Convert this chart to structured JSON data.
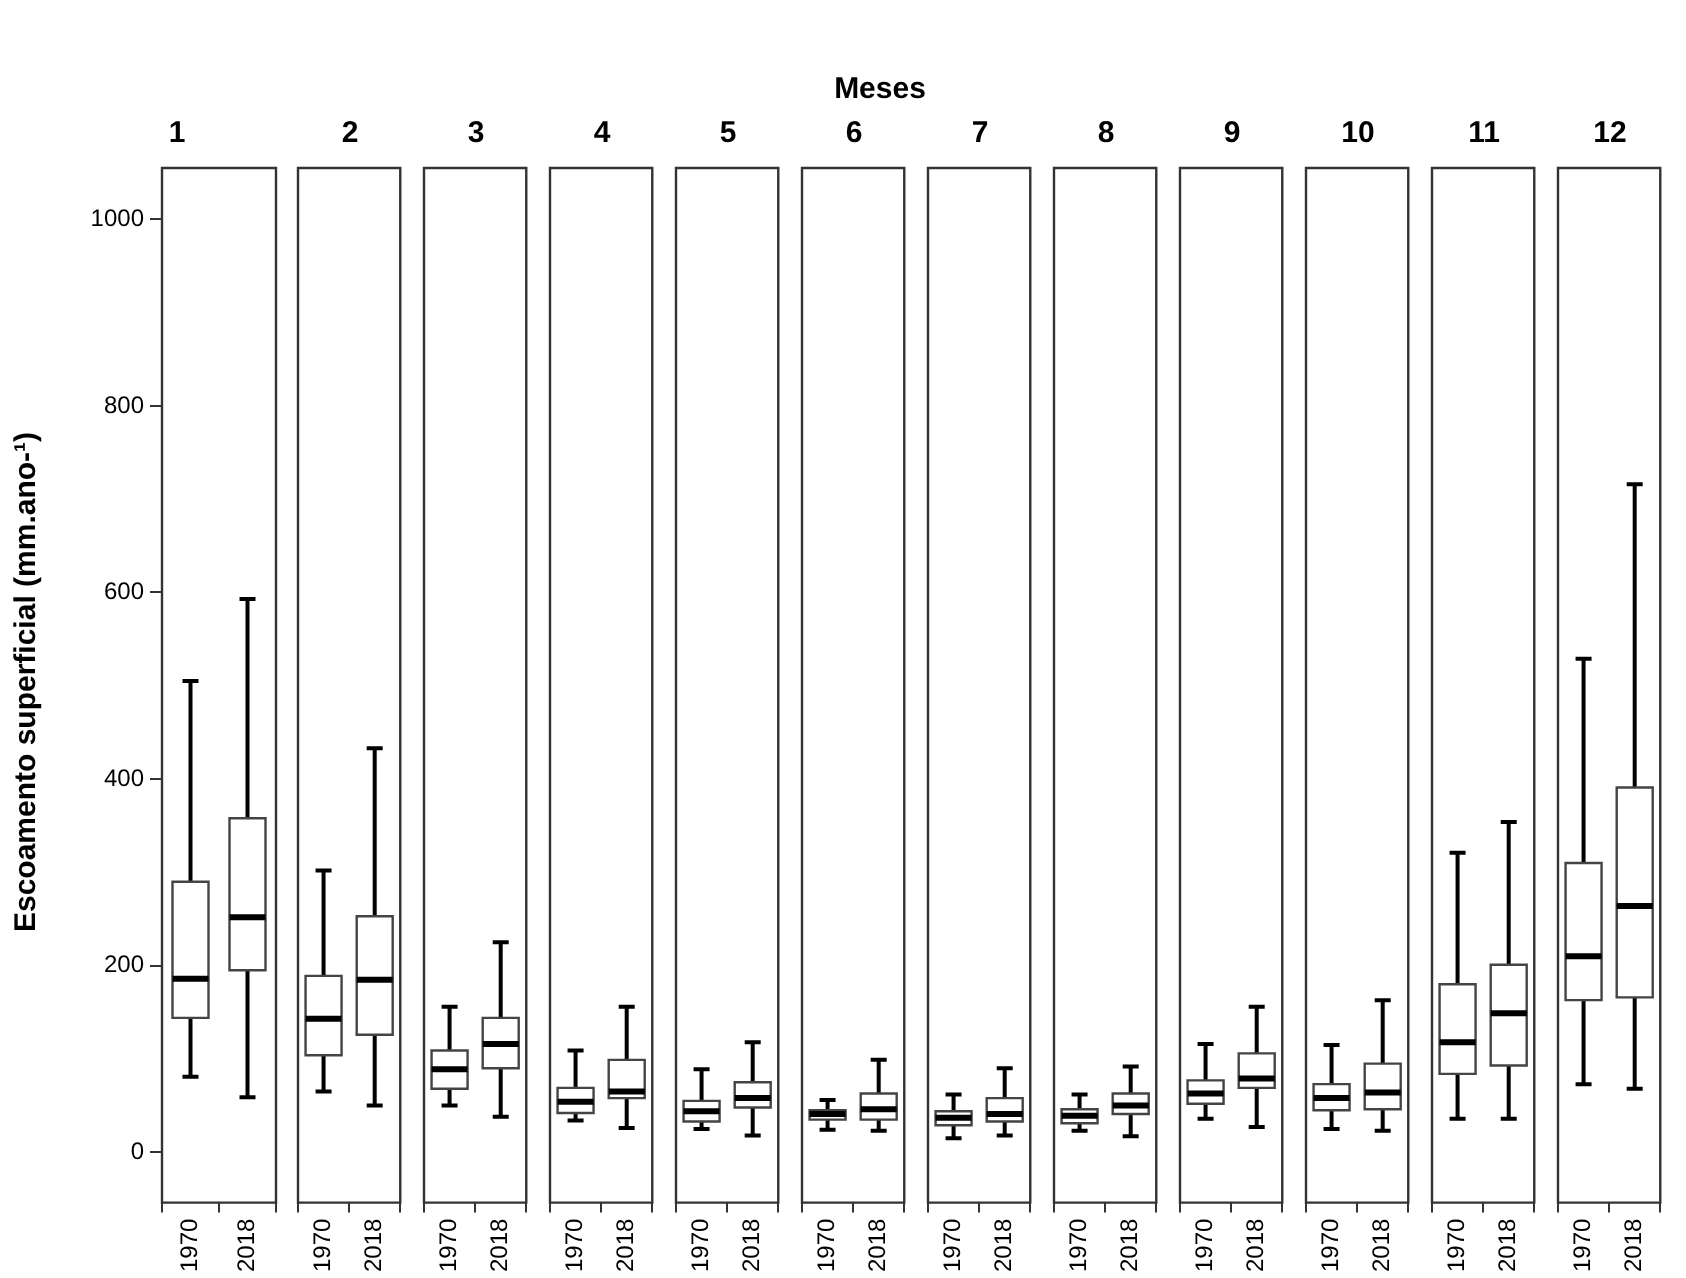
{
  "chart_data": [
    {
      "type": "box",
      "title": "1",
      "ylabel": "Escoamento superficial (mm.ano-¹)",
      "annotations": [
        "Meses"
      ],
      "categories": [
        "1970",
        "2018"
      ],
      "ylim": [
        -54,
        1055
      ],
      "yticks": [
        0,
        200,
        400,
        600,
        800,
        1000
      ],
      "boxes": [
        {
          "low": 81,
          "q1": 144,
          "median": 186,
          "q3": 290,
          "high": 505
        },
        {
          "low": 59,
          "q1": 195,
          "median": 252,
          "q3": 358,
          "high": 593
        }
      ]
    },
    {
      "type": "box",
      "title": "2",
      "tick_labels": "x",
      "categories": [
        "1970",
        "2018"
      ],
      "ylim": [
        -54,
        1055
      ],
      "boxes": [
        {
          "low": 65,
          "q1": 104,
          "median": 143,
          "q3": 189,
          "high": 302
        },
        {
          "low": 50,
          "q1": 126,
          "median": 185,
          "q3": 253,
          "high": 433
        }
      ]
    },
    {
      "type": "box",
      "title": "3",
      "tick_labels": "x",
      "categories": [
        "1970",
        "2018"
      ],
      "ylim": [
        -54,
        1055
      ],
      "boxes": [
        {
          "low": 50,
          "q1": 68,
          "median": 89,
          "q3": 109,
          "high": 156
        },
        {
          "low": 38,
          "q1": 90,
          "median": 116,
          "q3": 144,
          "high": 225
        }
      ]
    },
    {
      "type": "box",
      "title": "4",
      "tick_labels": "x",
      "categories": [
        "1970",
        "2018"
      ],
      "ylim": [
        -54,
        1055
      ],
      "boxes": [
        {
          "low": 34,
          "q1": 42,
          "median": 54,
          "q3": 69,
          "high": 109
        },
        {
          "low": 26,
          "q1": 58,
          "median": 65,
          "q3": 99,
          "high": 156
        }
      ]
    },
    {
      "type": "box",
      "title": "5",
      "tick_labels": "x",
      "categories": [
        "1970",
        "2018"
      ],
      "ylim": [
        -54,
        1055
      ],
      "boxes": [
        {
          "low": 25,
          "q1": 33,
          "median": 44,
          "q3": 55,
          "high": 89
        },
        {
          "low": 18,
          "q1": 48,
          "median": 58,
          "q3": 75,
          "high": 118
        }
      ]
    },
    {
      "type": "box",
      "title": "6",
      "tick_labels": "x",
      "categories": [
        "1970",
        "2018"
      ],
      "ylim": [
        -54,
        1055
      ],
      "boxes": [
        {
          "low": 24,
          "q1": 35,
          "median": 41,
          "q3": 45,
          "high": 56
        },
        {
          "low": 23,
          "q1": 35,
          "median": 46,
          "q3": 63,
          "high": 99
        }
      ]
    },
    {
      "type": "box",
      "title": "7",
      "tick_labels": "x",
      "categories": [
        "1970",
        "2018"
      ],
      "ylim": [
        -54,
        1055
      ],
      "boxes": [
        {
          "low": 15,
          "q1": 29,
          "median": 37,
          "q3": 44,
          "high": 62
        },
        {
          "low": 18,
          "q1": 33,
          "median": 41,
          "q3": 58,
          "high": 90
        }
      ]
    },
    {
      "type": "box",
      "title": "8",
      "tick_labels": "x",
      "categories": [
        "1970",
        "2018"
      ],
      "ylim": [
        -54,
        1055
      ],
      "boxes": [
        {
          "low": 23,
          "q1": 31,
          "median": 39,
          "q3": 46,
          "high": 62
        },
        {
          "low": 17,
          "q1": 41,
          "median": 50,
          "q3": 63,
          "high": 92
        }
      ]
    },
    {
      "type": "box",
      "title": "9",
      "tick_labels": "x",
      "categories": [
        "1970",
        "2018"
      ],
      "ylim": [
        -54,
        1055
      ],
      "boxes": [
        {
          "low": 36,
          "q1": 52,
          "median": 63,
          "q3": 77,
          "high": 116
        },
        {
          "low": 27,
          "q1": 69,
          "median": 79,
          "q3": 106,
          "high": 156
        }
      ]
    },
    {
      "type": "box",
      "title": "10",
      "tick_labels": "x",
      "categories": [
        "1970",
        "2018"
      ],
      "ylim": [
        -54,
        1055
      ],
      "boxes": [
        {
          "low": 25,
          "q1": 45,
          "median": 58,
          "q3": 73,
          "high": 115
        },
        {
          "low": 23,
          "q1": 46,
          "median": 64,
          "q3": 95,
          "high": 163
        }
      ]
    },
    {
      "type": "box",
      "title": "11",
      "tick_labels": "x",
      "categories": [
        "1970",
        "2018"
      ],
      "ylim": [
        -54,
        1055
      ],
      "boxes": [
        {
          "low": 36,
          "q1": 84,
          "median": 118,
          "q3": 180,
          "high": 321
        },
        {
          "low": 36,
          "q1": 93,
          "median": 149,
          "q3": 201,
          "high": 354
        }
      ]
    },
    {
      "type": "box",
      "title": "12",
      "tick_labels": "x",
      "categories": [
        "1970",
        "2018"
      ],
      "ylim": [
        -54,
        1055
      ],
      "boxes": [
        {
          "low": 73,
          "q1": 163,
          "median": 210,
          "q3": 310,
          "high": 529
        },
        {
          "low": 68,
          "q1": 166,
          "median": 264,
          "q3": 391,
          "high": 716
        }
      ]
    }
  ]
}
